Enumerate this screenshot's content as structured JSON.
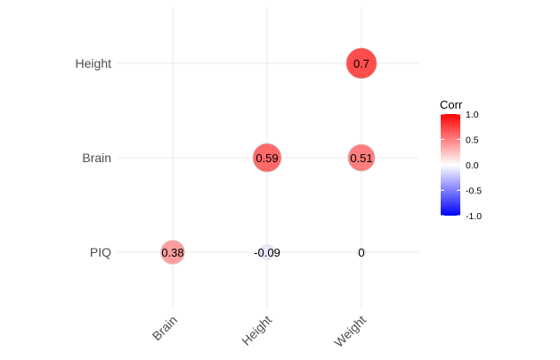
{
  "chart_data": {
    "type": "correlogram",
    "title": "",
    "xlabel": "",
    "ylabel": "",
    "x_categories": [
      "Brain",
      "Height",
      "Weight"
    ],
    "y_categories": [
      "PIQ",
      "Brain",
      "Height"
    ],
    "cells": [
      {
        "x": "Brain",
        "y": "PIQ",
        "value": 0.38,
        "label": "0.38"
      },
      {
        "x": "Height",
        "y": "PIQ",
        "value": -0.09,
        "label": "-0.09"
      },
      {
        "x": "Weight",
        "y": "PIQ",
        "value": 0.0,
        "label": "0"
      },
      {
        "x": "Height",
        "y": "Brain",
        "value": 0.59,
        "label": "0.59"
      },
      {
        "x": "Weight",
        "y": "Brain",
        "value": 0.51,
        "label": "0.51"
      },
      {
        "x": "Weight",
        "y": "Height",
        "value": 0.7,
        "label": "0.7"
      }
    ],
    "legend": {
      "title": "Corr",
      "position": "right",
      "range": [
        -1,
        1
      ],
      "ticks": [
        1.0,
        0.5,
        0.0,
        -0.5,
        -1.0
      ],
      "tick_labels": [
        "1.0",
        "0.5",
        "0.0",
        "-0.5",
        "-1.0"
      ],
      "low_color": "#0000ff",
      "mid_color": "#ffffff",
      "high_color": "#ff0000"
    },
    "grid": true
  }
}
